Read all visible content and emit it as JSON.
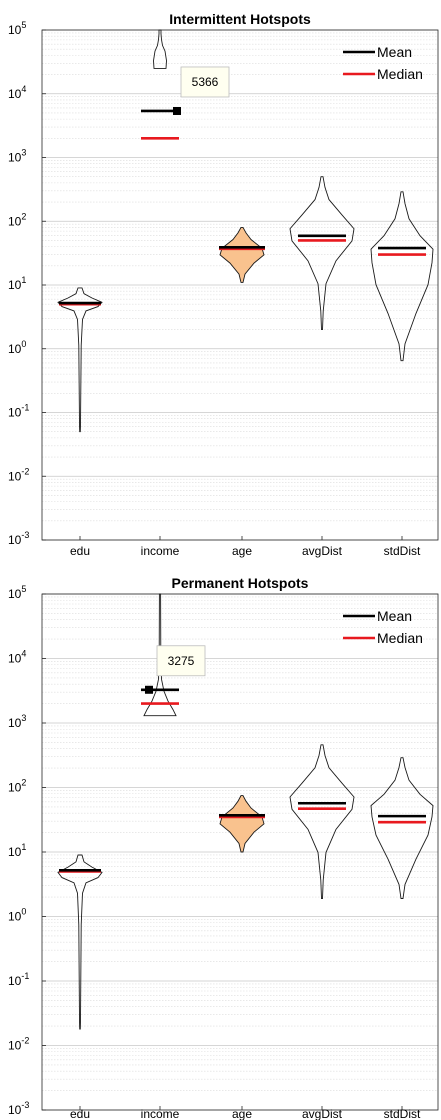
{
  "chart_data": [
    {
      "type": "violin",
      "title": "Intermittent Hotspots",
      "xlabel": "",
      "ylabel": "",
      "categories": [
        "edu",
        "income",
        "age",
        "avgDist",
        "stdDist"
      ],
      "yscale": "log",
      "ylim": [
        0.001,
        100000
      ],
      "y_ticks": [
        {
          "base": "10",
          "exp": "5"
        },
        {
          "base": "10",
          "exp": "4"
        },
        {
          "base": "10",
          "exp": "3"
        },
        {
          "base": "10",
          "exp": "2"
        },
        {
          "base": "10",
          "exp": "1"
        },
        {
          "base": "10",
          "exp": "0"
        },
        {
          "base": "10",
          "exp": "-1"
        },
        {
          "base": "10",
          "exp": "-2"
        },
        {
          "base": "10",
          "exp": "-3"
        }
      ],
      "legend": {
        "position": "top-right",
        "entries": [
          {
            "label": "Mean",
            "color": "#000000"
          },
          {
            "label": "Median",
            "color": "#e8191f"
          }
        ]
      },
      "series": [
        {
          "category": "edu",
          "mean": 5.2,
          "median": 5.0,
          "min": 0.05,
          "max": 9,
          "filled": false
        },
        {
          "category": "income",
          "mean": 5366,
          "median": 2000,
          "min": 25000,
          "max": 100000,
          "filled": false
        },
        {
          "category": "age",
          "mean": 39,
          "median": 37,
          "min": 11,
          "max": 80,
          "filled": true
        },
        {
          "category": "avgDist",
          "mean": 59,
          "median": 50,
          "min": 2,
          "max": 500,
          "filled": false
        },
        {
          "category": "stdDist",
          "mean": 38,
          "median": 30,
          "min": 0.65,
          "max": 290,
          "filled": false
        }
      ],
      "datatip": {
        "category": "income",
        "value": 5366,
        "label": "5366"
      },
      "colors": {
        "mean": "#000000",
        "median": "#e8191f",
        "fill": "#f9c28e",
        "grid": "#dcdcdc"
      }
    },
    {
      "type": "violin",
      "title": "Permanent Hotspots",
      "xlabel": "",
      "ylabel": "",
      "categories": [
        "edu",
        "income",
        "age",
        "avgDist",
        "stdDist"
      ],
      "yscale": "log",
      "ylim": [
        0.001,
        100000
      ],
      "y_ticks": [
        {
          "base": "10",
          "exp": "5"
        },
        {
          "base": "10",
          "exp": "4"
        },
        {
          "base": "10",
          "exp": "3"
        },
        {
          "base": "10",
          "exp": "2"
        },
        {
          "base": "10",
          "exp": "1"
        },
        {
          "base": "10",
          "exp": "0"
        },
        {
          "base": "10",
          "exp": "-1"
        },
        {
          "base": "10",
          "exp": "-2"
        },
        {
          "base": "10",
          "exp": "-3"
        }
      ],
      "legend": {
        "position": "top-right",
        "entries": [
          {
            "label": "Mean",
            "color": "#000000"
          },
          {
            "label": "Median",
            "color": "#e8191f"
          }
        ]
      },
      "series": [
        {
          "category": "edu",
          "mean": 5.2,
          "median": 5.0,
          "min": 0.018,
          "max": 9,
          "filled": false
        },
        {
          "category": "income",
          "mean": 3275,
          "median": 2000,
          "min": 1300,
          "max": 100000,
          "filled": false
        },
        {
          "category": "age",
          "mean": 37,
          "median": 35,
          "min": 10,
          "max": 75,
          "filled": true
        },
        {
          "category": "avgDist",
          "mean": 57,
          "median": 47,
          "min": 1.9,
          "max": 460,
          "filled": false
        },
        {
          "category": "stdDist",
          "mean": 36,
          "median": 29,
          "min": 1.9,
          "max": 290,
          "filled": false
        }
      ],
      "datatip": {
        "category": "income",
        "value": 3275,
        "label": "3275"
      },
      "colors": {
        "mean": "#000000",
        "median": "#e8191f",
        "fill": "#f9c28e",
        "grid": "#dcdcdc"
      }
    }
  ]
}
